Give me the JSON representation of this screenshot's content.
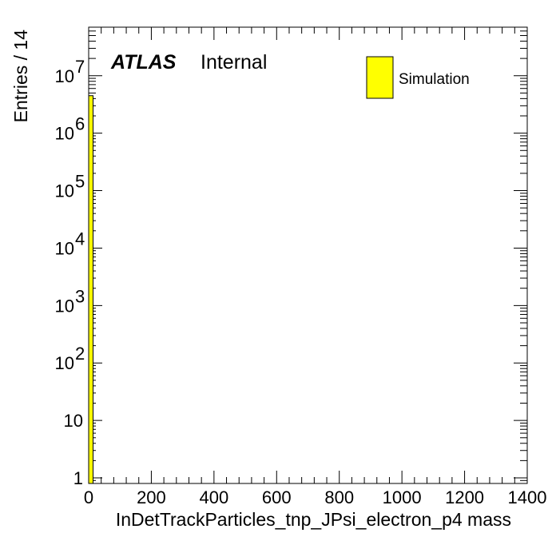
{
  "chart_data": {
    "type": "bar",
    "xlabel": "InDetTrackParticles_tnp_JPsi_electron_p4 mass",
    "ylabel": "Entries / 14",
    "xlim": [
      0,
      1400
    ],
    "ylim": [
      0.8,
      70000000
    ],
    "log_y": true,
    "grid": false,
    "bin_width": 14,
    "x_ticks": [
      {
        "value": 0,
        "label": "0"
      },
      {
        "value": 200,
        "label": "200"
      },
      {
        "value": 400,
        "label": "400"
      },
      {
        "value": 600,
        "label": "600"
      },
      {
        "value": 800,
        "label": "800"
      },
      {
        "value": 1000,
        "label": "1000"
      },
      {
        "value": 1200,
        "label": "1200"
      },
      {
        "value": 1400,
        "label": "1400"
      }
    ],
    "y_ticks": [
      {
        "value": 1,
        "base": "1",
        "exp": ""
      },
      {
        "value": 10,
        "base": "10",
        "exp": ""
      },
      {
        "value": 100,
        "base": "10",
        "exp": "2"
      },
      {
        "value": 1000,
        "base": "10",
        "exp": "3"
      },
      {
        "value": 10000,
        "base": "10",
        "exp": "4"
      },
      {
        "value": 100000,
        "base": "10",
        "exp": "5"
      },
      {
        "value": 1000000,
        "base": "10",
        "exp": "6"
      },
      {
        "value": 10000000,
        "base": "10",
        "exp": "7"
      }
    ],
    "series": [
      {
        "name": "Simulation",
        "color": "#ffff00",
        "bins": [
          {
            "x_low": 0,
            "x_high": 14,
            "value": 4500000
          }
        ]
      }
    ],
    "legend": {
      "placement": "top-right",
      "entries": [
        "Simulation"
      ]
    },
    "annotations": {
      "experiment": "ATLAS",
      "status": "Internal"
    }
  }
}
